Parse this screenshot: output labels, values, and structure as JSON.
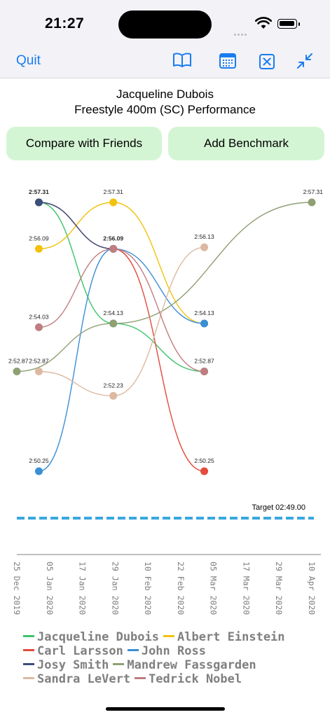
{
  "status_bar": {
    "time": "21:27"
  },
  "nav": {
    "quit_label": "Quit",
    "icons": [
      "book-icon",
      "calendar-icon",
      "close-square-icon",
      "collapse-icon"
    ]
  },
  "header": {
    "swimmer": "Jacqueline Dubois",
    "event": "Freestyle 400m (SC) Performance"
  },
  "buttons": {
    "compare": "Compare with Friends",
    "benchmark": "Add Benchmark"
  },
  "colors": {
    "accent": "#1a7cf0",
    "button_bg": "#d4f5d4",
    "target": "#39a7e0"
  },
  "chart_data": {
    "type": "line",
    "xlabel": "",
    "ylabel": "",
    "x_tick_labels": [
      "25 Dec 2019",
      "05 Jan 2020",
      "17 Jan 2020",
      "29 Jan 2020",
      "10 Feb 2020",
      "22 Feb 2020",
      "05 Mar 2020",
      "17 Mar 2020",
      "29 Mar 2020",
      "10 Apr 2020"
    ],
    "target_label": "Target 02:49.00",
    "target_seconds": 169.0,
    "series": [
      {
        "name": "Jacqueline Dubois",
        "color": "#3cc46a",
        "points": [
          {
            "x": "2020-01-02",
            "y": 177.31,
            "label": "2:57.31"
          },
          {
            "x": "2020-01-29",
            "y": 174.13,
            "label": "2:54.13"
          },
          {
            "x": "2020-03-02",
            "y": 172.87,
            "label": "2:52.87"
          }
        ]
      },
      {
        "name": "Albert Einstein",
        "color": "#f2c20e",
        "points": [
          {
            "x": "2020-01-02",
            "y": 176.09,
            "label": "2:56.09"
          },
          {
            "x": "2020-01-29",
            "y": 177.31,
            "label": "2:57.31"
          },
          {
            "x": "2020-03-02",
            "y": 174.13,
            "label": "2:54.13"
          }
        ]
      },
      {
        "name": "Carl Larsson",
        "color": "#e34b3c",
        "points": [
          {
            "x": "2020-01-02",
            "y": 177.31,
            "label": "2:57.31"
          },
          {
            "x": "2020-01-29",
            "y": 176.09,
            "label": "2:56.09"
          },
          {
            "x": "2020-03-02",
            "y": 170.25,
            "label": "2:50.25"
          }
        ]
      },
      {
        "name": "John Ross",
        "color": "#3a8fd6",
        "points": [
          {
            "x": "2020-01-02",
            "y": 170.25,
            "label": "2:50.25"
          },
          {
            "x": "2020-01-29",
            "y": 176.09,
            "label": "2:56.09"
          },
          {
            "x": "2020-03-02",
            "y": 174.13,
            "label": "2:54.13"
          }
        ]
      },
      {
        "name": "Josy Smith",
        "color": "#3b4f7c",
        "points": [
          {
            "x": "2020-01-02",
            "y": 177.31,
            "label": "2:57.31"
          },
          {
            "x": "2020-01-29",
            "y": 176.09,
            "label": "2:56.09"
          }
        ]
      },
      {
        "name": "Mandrew Fassgarden",
        "color": "#8fa073",
        "points": [
          {
            "x": "2019-12-25",
            "y": 172.87,
            "label": "2:52.87"
          },
          {
            "x": "2020-01-29",
            "y": 174.13,
            "label": "2:54.13"
          },
          {
            "x": "2020-04-10",
            "y": 177.31,
            "label": "2:57.31"
          }
        ]
      },
      {
        "name": "Sandra LeVert",
        "color": "#dcb9a0",
        "points": [
          {
            "x": "2020-01-02",
            "y": 172.87,
            "label": "2:52.87"
          },
          {
            "x": "2020-01-29",
            "y": 172.23,
            "label": "2:52.23"
          },
          {
            "x": "2020-03-02",
            "y": 176.13,
            "label": "2:56.13"
          }
        ]
      },
      {
        "name": "Tedrick Nobel",
        "color": "#c07d80",
        "points": [
          {
            "x": "2020-01-02",
            "y": 174.03,
            "label": "2:54.03"
          },
          {
            "x": "2020-01-29",
            "y": 176.09,
            "label": "2:56.09"
          },
          {
            "x": "2020-03-02",
            "y": 172.87,
            "label": "2:52.87"
          }
        ]
      }
    ]
  }
}
